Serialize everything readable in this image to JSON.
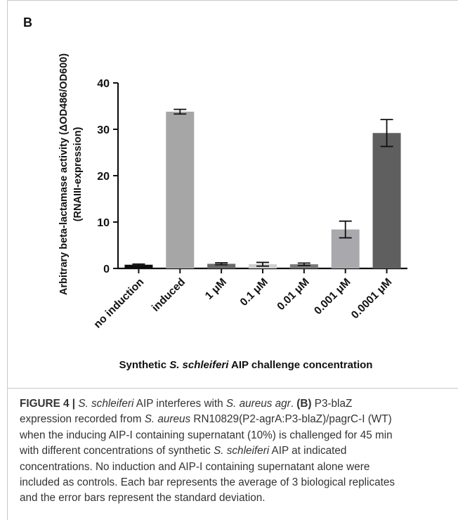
{
  "panel_letter": "B",
  "chart_data": {
    "type": "bar",
    "ylabel_line1": "Arbitrary beta-lactamase activity (ΔOD486/OD600)",
    "ylabel_line2": "(RNAIII-expression)",
    "xlabel_parts": [
      "Synthetic ",
      "S. schleiferi",
      " AIP challenge concentration"
    ],
    "categories": [
      "no induction",
      "induced",
      "1 μM",
      "0.1 μM",
      "0.01 μM",
      "0.001 μM",
      "0.0001 μM"
    ],
    "values": [
      0.8,
      33.8,
      1.0,
      0.9,
      0.9,
      8.4,
      29.2
    ],
    "errors": [
      0.15,
      0.5,
      0.2,
      0.4,
      0.25,
      1.8,
      2.9
    ],
    "bar_colors": [
      "#0d0d0d",
      "#a6a6a6",
      "#6b6b6b",
      "#d0d0d0",
      "#7a7a7a",
      "#a9a9ad",
      "#5f5f5f"
    ],
    "ylim": [
      0,
      40
    ],
    "yticks": [
      0,
      10,
      20,
      30,
      40
    ],
    "grid": false
  },
  "caption": {
    "figure_label": "FIGURE 4 |",
    "line1": [
      {
        "t": " ",
        "s": "n"
      },
      {
        "t": "S. schleiferi",
        "s": "i"
      },
      {
        "t": " AIP interferes with ",
        "s": "n"
      },
      {
        "t": "S. aureus agr",
        "s": "i"
      },
      {
        "t": ". ",
        "s": "n"
      },
      {
        "t": "(B)",
        "s": "b"
      },
      {
        "t": " P3-blaZ",
        "s": "n"
      }
    ],
    "line2": [
      {
        "t": "expression recorded from ",
        "s": "n"
      },
      {
        "t": "S. aureus",
        "s": "i"
      },
      {
        "t": " RN10829(P2-agrA:P3-blaZ)/pagrC-I (WT)",
        "s": "n"
      }
    ],
    "line3": [
      {
        "t": "when the inducing AIP-I containing supernatant (10%) is challenged for 45 min",
        "s": "n"
      }
    ],
    "line4": [
      {
        "t": "with different concentrations of synthetic ",
        "s": "n"
      },
      {
        "t": "S. schleiferi",
        "s": "i"
      },
      {
        "t": " AIP at indicated",
        "s": "n"
      }
    ],
    "line5": [
      {
        "t": "concentrations. No induction and AIP-I containing supernatant alone were",
        "s": "n"
      }
    ],
    "line6": [
      {
        "t": "included as controls. Each bar represents the average of 3 biological replicates",
        "s": "n"
      }
    ],
    "line7": [
      {
        "t": "and the error bars represent the standard deviation.",
        "s": "n"
      }
    ]
  }
}
